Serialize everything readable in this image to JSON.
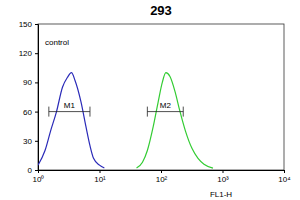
{
  "chart_data": {
    "type": "line",
    "title": "293",
    "x_label": "FL1-H",
    "log": "x",
    "xlim": [
      1,
      10000
    ],
    "xticks": [
      {
        "value": 1,
        "label": "10⁰"
      },
      {
        "value": 10,
        "label": "10¹"
      },
      {
        "value": 100,
        "label": "10²"
      },
      {
        "value": 1000,
        "label": "10³"
      },
      {
        "value": 10000,
        "label": "10⁴"
      }
    ],
    "ylim": [
      0,
      150
    ],
    "yticks": [
      0,
      30,
      60,
      90,
      120,
      150
    ],
    "series": [
      {
        "color": "#2a2ab8",
        "x": [
          1.0,
          1.3,
          1.6,
          2,
          2.5,
          3,
          3.5,
          4,
          5,
          6,
          7,
          8,
          10,
          12
        ],
        "values": [
          5,
          20,
          40,
          60,
          85,
          95,
          100,
          92,
          70,
          45,
          25,
          12,
          5,
          2
        ]
      },
      {
        "color": "#33cc33",
        "x": [
          40,
          50,
          60,
          75,
          90,
          105,
          120,
          140,
          170,
          200,
          250,
          320,
          400,
          500,
          700
        ],
        "values": [
          2,
          8,
          20,
          45,
          70,
          90,
          100,
          96,
          80,
          62,
          40,
          22,
          12,
          6,
          2
        ]
      }
    ],
    "gates": [
      {
        "label": "M1",
        "x": [
          1.5,
          7
        ],
        "y": 60
      },
      {
        "label": "M2",
        "x": [
          60,
          230
        ],
        "y": 60
      }
    ],
    "annotations": [
      {
        "text": "control",
        "x": 1.3,
        "y": 128
      }
    ]
  }
}
